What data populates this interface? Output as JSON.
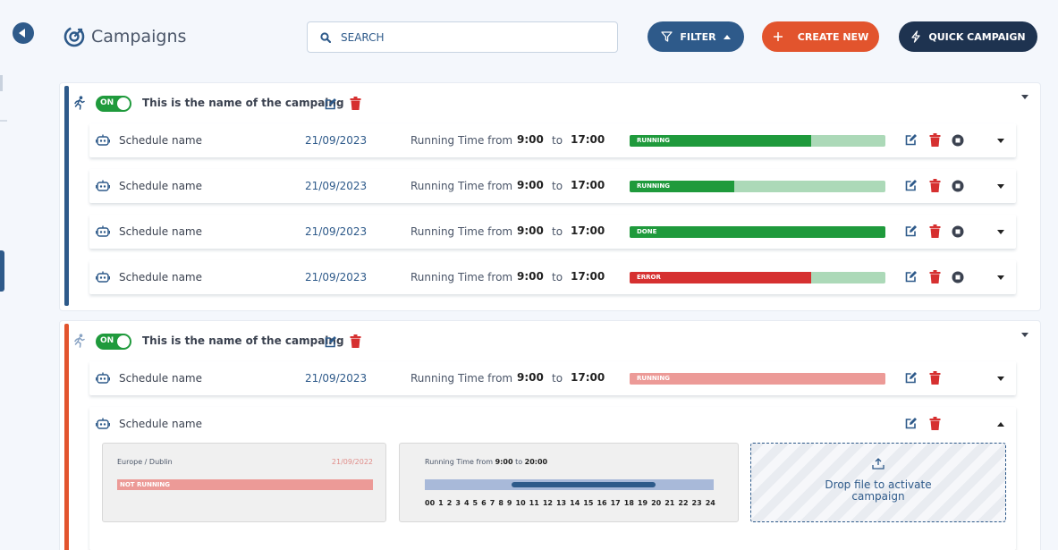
{
  "header": {
    "title": "Campaigns",
    "search_placeholder": "SEARCH",
    "filter_label": "FILTER",
    "create_label": "CREATE NEW",
    "quick_label": "QUICK CAMPAIGN"
  },
  "colors": {
    "primary": "#2e5a8a",
    "accent_orange": "#e2542d",
    "dark_navy": "#1e3350",
    "running_green": "#1f9a3c",
    "error_red": "#d63030",
    "light_green": "#acd9b8",
    "light_red": "#ec9a97"
  },
  "campaigns": [
    {
      "toggle": "ON",
      "name": "This is the name of the campaing",
      "schedules": [
        {
          "name": "Schedule name",
          "date": "21/09/2023",
          "running_label": "Running Time from",
          "from": "9:00",
          "to_label": "to",
          "to": "17:00",
          "status": "RUNNING",
          "progress": 0.71
        },
        {
          "name": "Schedule name",
          "date": "21/09/2023",
          "running_label": "Running Time from",
          "from": "9:00",
          "to_label": "to",
          "to": "17:00",
          "status": "RUNNING",
          "progress": 0.41
        },
        {
          "name": "Schedule name",
          "date": "21/09/2023",
          "running_label": "Running Time from",
          "from": "9:00",
          "to_label": "to",
          "to": "17:00",
          "status": "DONE",
          "progress": 1.0
        },
        {
          "name": "Schedule name",
          "date": "21/09/2023",
          "running_label": "Running Time from",
          "from": "9:00",
          "to_label": "to",
          "to": "17:00",
          "status": "ERROR",
          "progress": 0.71
        }
      ]
    },
    {
      "toggle": "ON",
      "name": "This is the name of the campaing",
      "schedules": [
        {
          "name": "Schedule name",
          "date": "21/09/2023",
          "running_label": "Running Time from",
          "from": "9:00",
          "to_label": "to",
          "to": "17:00",
          "status": "RUNNING",
          "progress": 1.0
        },
        {
          "name": "Schedule name",
          "expanded": {
            "timezone": "Europe / Dublin",
            "date": "21/09/2022",
            "status": "NOT RUNNING",
            "running_label": "Running Time from",
            "from": "9:00",
            "to_label": "to",
            "to": "20:00",
            "window_start_fraction": 0.3,
            "window_end_fraction": 0.8,
            "hours": [
              "00",
              "1",
              "2",
              "3",
              "4",
              "5",
              "6",
              "7",
              "8",
              "9",
              "10",
              "11",
              "12",
              "13",
              "14",
              "15",
              "16",
              "17",
              "18",
              "19",
              "20",
              "21",
              "22",
              "23",
              "24"
            ],
            "drop_text_1": "Drop file to activate",
            "drop_text_2": "campaign"
          }
        }
      ]
    }
  ]
}
